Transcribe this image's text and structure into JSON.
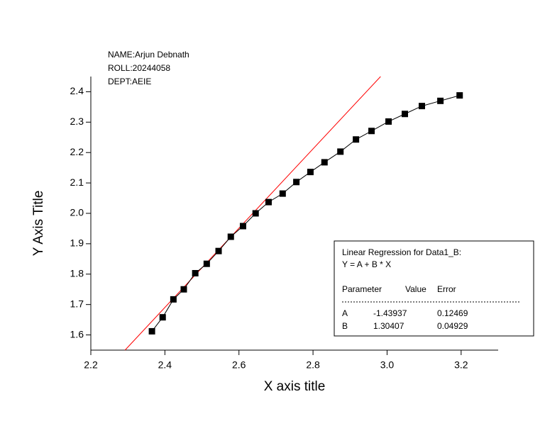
{
  "chart_data": {
    "type": "scatter-line",
    "x_label": "X axis title",
    "y_label": "Y Axis Title",
    "annotation": [
      "NAME:Arjun Debnath",
      "ROLL:20244058",
      "DEPT:AEIE"
    ],
    "xlim": [
      2.2,
      3.3
    ],
    "ylim": [
      1.55,
      2.45
    ],
    "xticks": [
      2.2,
      2.4,
      2.6,
      2.8,
      {
        "value": 3,
        "label": "3.0"
      },
      3.2
    ],
    "yticks": [
      1.6,
      1.7,
      1.8,
      1.9,
      {
        "value": 2,
        "label": "2.0"
      },
      2.1,
      2.2,
      2.3,
      2.4
    ],
    "series": [
      {
        "color": "#000000",
        "x": [
          2.365,
          2.394,
          2.423,
          2.451,
          2.482,
          2.513,
          2.545,
          2.578,
          2.611,
          2.645,
          2.68,
          2.718,
          2.755,
          2.793,
          2.831,
          2.874,
          2.916,
          2.958,
          3.004,
          3.048,
          3.094,
          3.144,
          3.196
        ],
        "values": [
          1.612,
          1.658,
          1.717,
          1.75,
          1.803,
          1.834,
          1.876,
          1.923,
          1.958,
          2.0,
          2.037,
          2.065,
          2.103,
          2.136,
          2.168,
          2.203,
          2.243,
          2.271,
          2.302,
          2.327,
          2.353,
          2.37,
          2.388
        ]
      }
    ],
    "regression": {
      "title": "Linear Regression for Data1_B:",
      "equation": "Y = A + B * X",
      "color": "#ff0000",
      "headers": [
        "Parameter",
        "Value",
        "Error"
      ],
      "rows": [
        {
          "name": "A",
          "value": -1.43937,
          "error": 0.12469
        },
        {
          "name": "B",
          "value": 1.30407,
          "error": 0.04929
        }
      ]
    }
  }
}
